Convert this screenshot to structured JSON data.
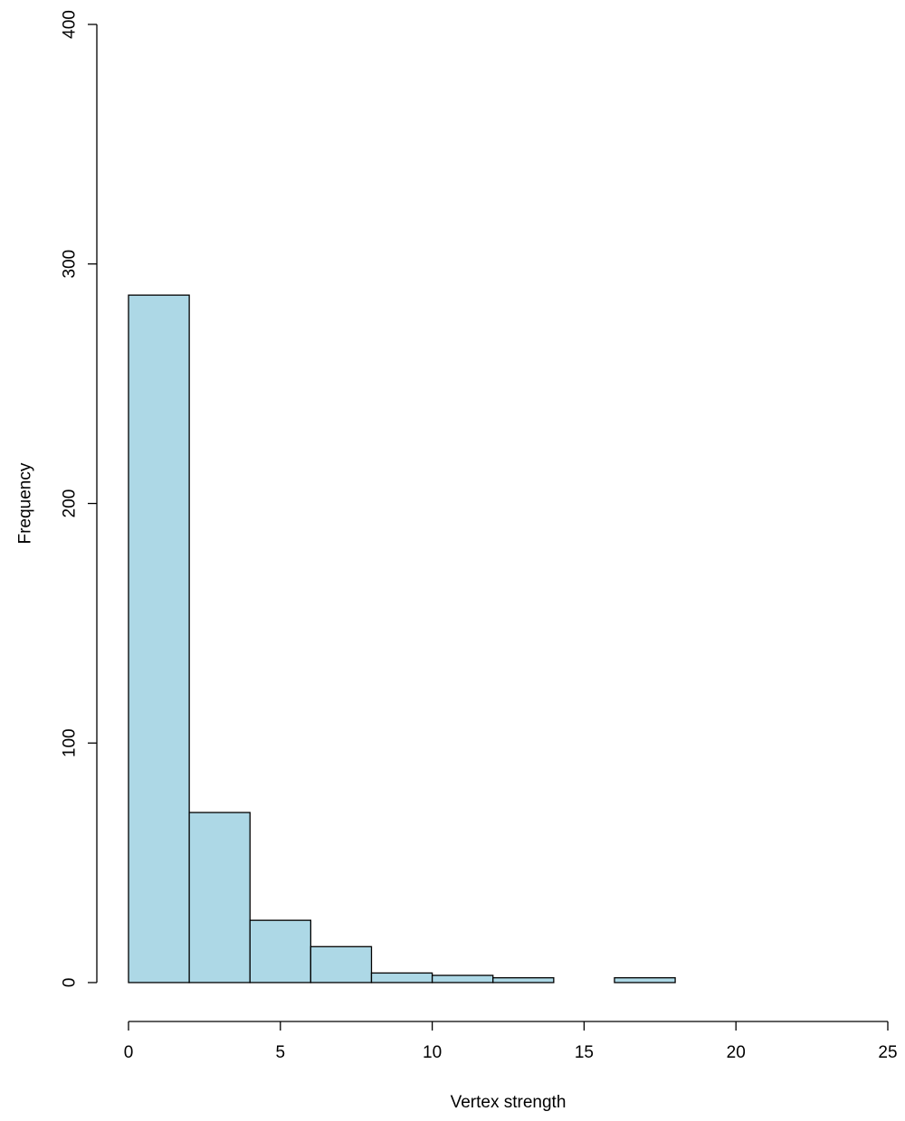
{
  "chart_data": {
    "type": "bar",
    "subtype": "histogram",
    "title": "",
    "xlabel": "Vertex strength",
    "ylabel": "Frequency",
    "bins": [
      {
        "x0": 0,
        "x1": 2,
        "count": 287
      },
      {
        "x0": 2,
        "x1": 4,
        "count": 71
      },
      {
        "x0": 4,
        "x1": 6,
        "count": 26
      },
      {
        "x0": 6,
        "x1": 8,
        "count": 15
      },
      {
        "x0": 8,
        "x1": 10,
        "count": 4
      },
      {
        "x0": 10,
        "x1": 12,
        "count": 3
      },
      {
        "x0": 12,
        "x1": 14,
        "count": 2
      },
      {
        "x0": 14,
        "x1": 16,
        "count": 0
      },
      {
        "x0": 16,
        "x1": 18,
        "count": 2
      }
    ],
    "xlim": [
      0,
      25
    ],
    "ylim": [
      0,
      400
    ],
    "xticks": [
      0,
      5,
      10,
      15,
      20,
      25
    ],
    "yticks": [
      0,
      100,
      200,
      300,
      400
    ],
    "bar_color": "#add8e6",
    "grid": false,
    "legend": "none"
  }
}
